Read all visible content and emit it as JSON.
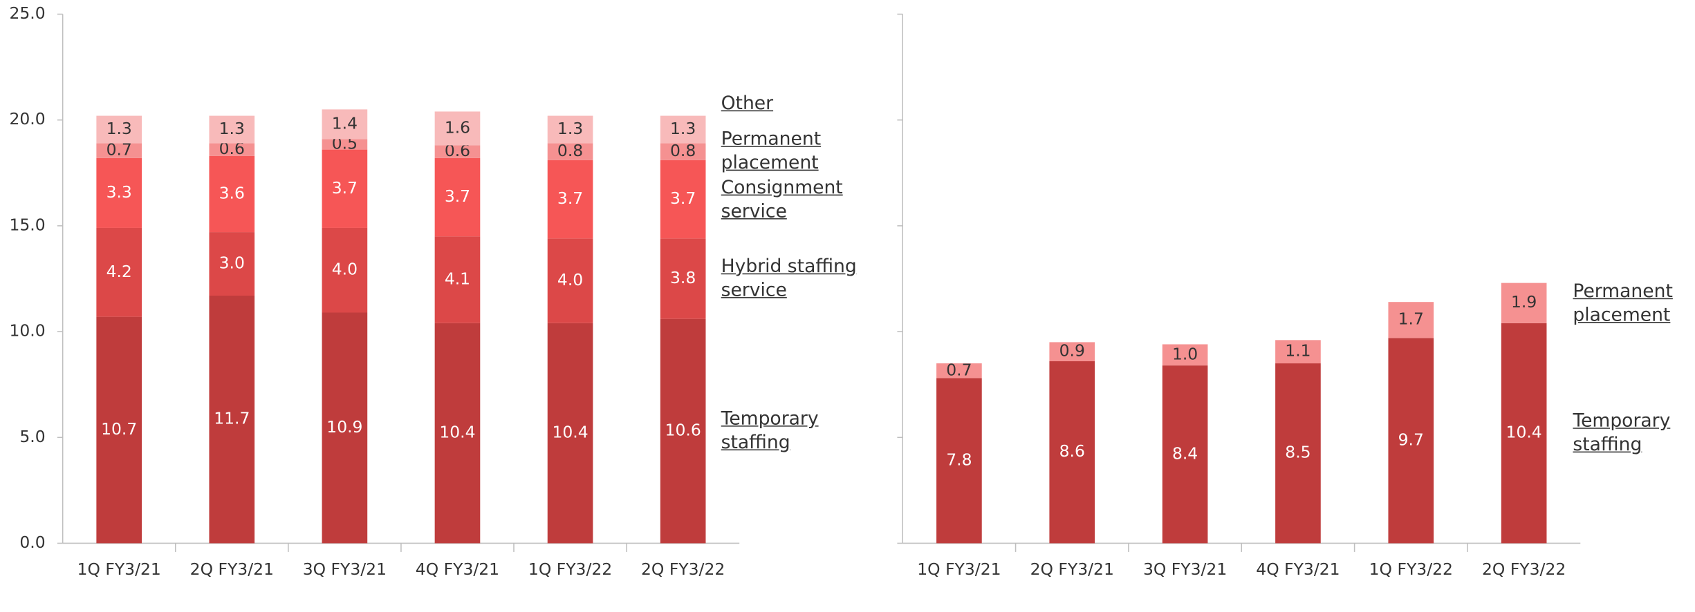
{
  "chart_data": [
    {
      "type": "bar",
      "stacked": true,
      "categories": [
        "1Q FY3/21",
        "2Q FY3/21",
        "3Q FY3/21",
        "4Q FY3/21",
        "1Q FY3/22",
        "2Q FY3/22"
      ],
      "series": [
        {
          "name": "Temporary staffing",
          "color": "#bf3c3c",
          "label_color": "#ffffff",
          "values": [
            10.7,
            11.7,
            10.9,
            10.4,
            10.4,
            10.6
          ],
          "value_labels": [
            "10.7",
            "11.7",
            "10.9",
            "10.4",
            "10.4",
            "10.6"
          ]
        },
        {
          "name": "Hybrid staffing service",
          "color": "#dc4848",
          "label_color": "#ffffff",
          "values": [
            4.2,
            3,
            4,
            4.1,
            4,
            3.8
          ],
          "value_labels": [
            "4.2",
            "3.0",
            "4.0",
            "4.1",
            "4.0",
            "3.8"
          ]
        },
        {
          "name": "Consignment service",
          "color": "#f65656",
          "label_color": "#ffffff",
          "values": [
            3.3,
            3.6,
            3.7,
            3.7,
            3.7,
            3.7
          ],
          "value_labels": [
            "3.3",
            "3.6",
            "3.7",
            "3.7",
            "3.7",
            "3.7"
          ]
        },
        {
          "name": "Permanent placement",
          "color": "#f59191",
          "label_color": "#333333",
          "values": [
            0.7,
            0.6,
            0.5,
            0.6,
            0.8,
            0.8
          ],
          "value_labels": [
            "0.7",
            "0.6",
            "0.5",
            "0.6",
            "0.8",
            "0.8"
          ]
        },
        {
          "name": "Other",
          "color": "#f8baba",
          "label_color": "#333333",
          "values": [
            1.3,
            1.3,
            1.4,
            1.6,
            1.3,
            1.3
          ],
          "value_labels": [
            "1.3",
            "1.3",
            "1.4",
            "1.6",
            "1.3",
            "1.3"
          ]
        }
      ],
      "ylim": [
        0,
        25
      ],
      "yticks": [
        {
          "value": 0,
          "label": "0.0"
        },
        {
          "value": 5,
          "label": "5.0"
        },
        {
          "value": 10,
          "label": "10.0"
        },
        {
          "value": 15,
          "label": "15.0"
        },
        {
          "value": 20,
          "label": "20.0"
        },
        {
          "value": 25,
          "label": "25.0"
        }
      ],
      "tick_labels": true
    },
    {
      "type": "bar",
      "stacked": true,
      "categories": [
        "1Q FY3/21",
        "2Q FY3/21",
        "3Q FY3/21",
        "4Q FY3/21",
        "1Q FY3/22",
        "2Q FY3/22"
      ],
      "series": [
        {
          "name": "Temporary staffing",
          "color": "#bf3c3c",
          "label_color": "#ffffff",
          "values": [
            7.8,
            8.6,
            8.4,
            8.5,
            9.7,
            10.4
          ],
          "value_labels": [
            "7.8",
            "8.6",
            "8.4",
            "8.5",
            "9.7",
            "10.4"
          ]
        },
        {
          "name": "Permanent placement",
          "color": "#f59191",
          "label_color": "#333333",
          "values": [
            0.7,
            0.9,
            1,
            1.1,
            1.7,
            1.9
          ],
          "value_labels": [
            "0.7",
            "0.9",
            "1.0",
            "1.1",
            "1.7",
            "1.9"
          ]
        }
      ],
      "ylim": [
        0,
        25
      ],
      "yticks": [
        0,
        5,
        10,
        15,
        20,
        25
      ],
      "tick_labels": false
    }
  ]
}
